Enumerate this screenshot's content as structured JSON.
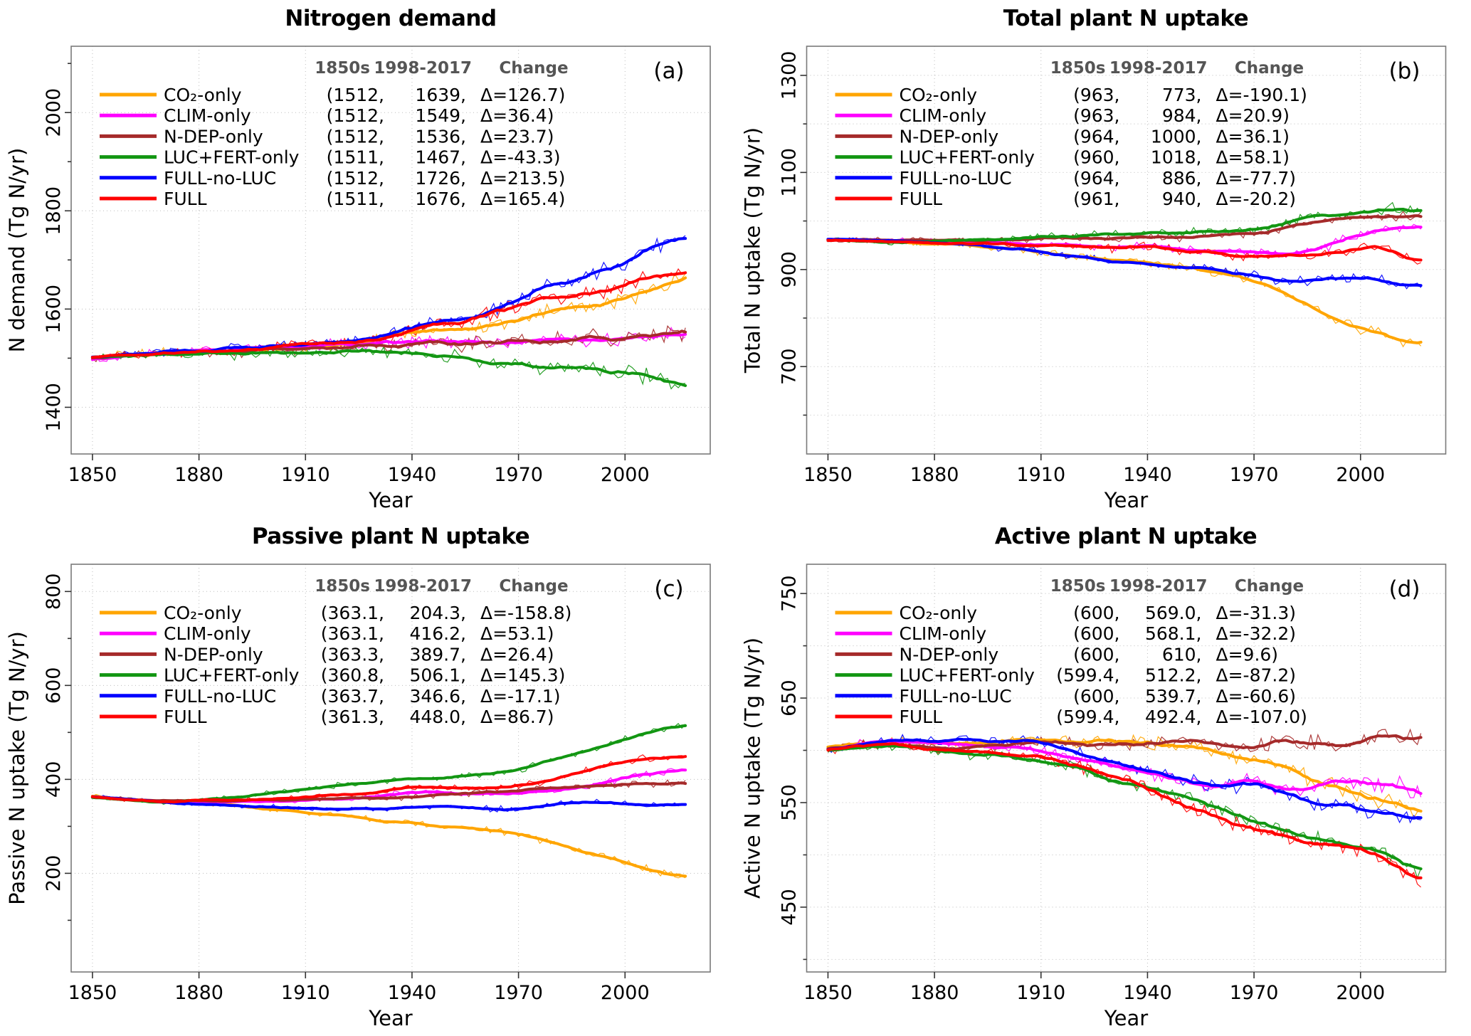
{
  "figure": {
    "background": "#ffffff"
  },
  "chart_data": [
    {
      "type": "line",
      "title": "Nitrogen demand",
      "panel_label": "(a)",
      "xlabel": "Year",
      "ylabel": "N demand (Tg N/yr)",
      "xlim": [
        1844,
        2024
      ],
      "ylim": [
        1305,
        2135
      ],
      "xticks": [
        1850,
        1880,
        1910,
        1940,
        1970,
        2000
      ],
      "yticks": [
        1400,
        1600,
        1800,
        2000
      ],
      "minor_grid": false,
      "noise_amp": 14,
      "legend_headers": [
        "1850s",
        "1998-2017",
        "Change"
      ],
      "years": [
        1850,
        1860,
        1870,
        1880,
        1890,
        1900,
        1910,
        1920,
        1930,
        1940,
        1950,
        1960,
        1970,
        1980,
        1990,
        2000,
        2010,
        2017
      ],
      "series": [
        {
          "name": "CO₂-only",
          "color": "#FFA500",
          "v1850": "1512",
          "v1998": "1639",
          "delta": "126.7",
          "values": [
            1500,
            1508,
            1512,
            1514,
            1515,
            1517,
            1522,
            1527,
            1538,
            1552,
            1558,
            1562,
            1578,
            1600,
            1612,
            1622,
            1648,
            1672
          ]
        },
        {
          "name": "CLIM-only",
          "color": "#FF00FF",
          "v1850": "1512",
          "v1998": "1549",
          "delta": "36.4",
          "values": [
            1500,
            1507,
            1511,
            1513,
            1515,
            1519,
            1524,
            1527,
            1530,
            1532,
            1535,
            1530,
            1536,
            1545,
            1536,
            1545,
            1551,
            1549
          ]
        },
        {
          "name": "N-DEP-only",
          "color": "#A52A2A",
          "v1850": "1512",
          "v1998": "1536",
          "delta": "23.7",
          "values": [
            1500,
            1506,
            1511,
            1512,
            1512,
            1516,
            1520,
            1523,
            1526,
            1528,
            1528,
            1530,
            1532,
            1536,
            1540,
            1540,
            1547,
            1550
          ]
        },
        {
          "name": "LUC+FERT-only",
          "color": "#129612",
          "v1850": "1511",
          "v1998": "1467",
          "delta": "-43.3",
          "values": [
            1500,
            1505,
            1509,
            1510,
            1508,
            1511,
            1514,
            1515,
            1514,
            1510,
            1505,
            1494,
            1490,
            1481,
            1475,
            1470,
            1464,
            1442
          ]
        },
        {
          "name": "FULL-no-LUC",
          "color": "#0000FF",
          "v1850": "1512",
          "v1998": "1726",
          "delta": "213.5",
          "values": [
            1500,
            1508,
            1514,
            1516,
            1518,
            1524,
            1530,
            1536,
            1546,
            1564,
            1576,
            1590,
            1620,
            1650,
            1665,
            1695,
            1730,
            1748
          ]
        },
        {
          "name": "FULL",
          "color": "#FF0000",
          "v1850": "1511",
          "v1998": "1676",
          "delta": "165.4",
          "values": [
            1500,
            1507,
            1512,
            1514,
            1515,
            1521,
            1527,
            1533,
            1540,
            1556,
            1570,
            1585,
            1610,
            1628,
            1630,
            1650,
            1674,
            1678
          ]
        }
      ]
    },
    {
      "type": "line",
      "title": "Total plant N uptake",
      "panel_label": "(b)",
      "xlabel": "Year",
      "ylabel": "Total N uptake (Tg N/yr)",
      "xlim": [
        1844,
        2024
      ],
      "ylim": [
        520,
        1360
      ],
      "xticks": [
        1850,
        1880,
        1910,
        1940,
        1970,
        2000
      ],
      "yticks": [
        700,
        900,
        1100,
        1300
      ],
      "minor_grid": true,
      "noise_amp": 9,
      "legend_headers": [
        "1850s",
        "1998-2017",
        "Change"
      ],
      "years": [
        1850,
        1860,
        1870,
        1880,
        1890,
        1900,
        1910,
        1920,
        1930,
        1940,
        1950,
        1960,
        1970,
        1980,
        1990,
        2000,
        2010,
        2017
      ],
      "series": [
        {
          "name": "CO₂-only",
          "color": "#FFA500",
          "v1850": "963",
          "v1998": "773",
          "delta": "-190.1",
          "values": [
            962,
            960,
            957,
            954,
            950,
            944,
            936,
            928,
            920,
            912,
            905,
            895,
            873,
            845,
            810,
            780,
            756,
            742
          ]
        },
        {
          "name": "CLIM-only",
          "color": "#FF00FF",
          "v1850": "963",
          "v1998": "984",
          "delta": "20.9",
          "values": [
            962,
            961,
            959,
            958,
            957,
            955,
            951,
            948,
            944,
            950,
            940,
            934,
            936,
            930,
            945,
            975,
            984,
            986
          ]
        },
        {
          "name": "N-DEP-only",
          "color": "#A52A2A",
          "v1850": "964",
          "v1998": "1000",
          "delta": "36.1",
          "values": [
            963,
            961,
            960,
            960,
            960,
            961,
            962,
            963,
            965,
            966,
            966,
            970,
            976,
            990,
            1000,
            1005,
            1009,
            1010
          ]
        },
        {
          "name": "LUC+FERT-only",
          "color": "#129612",
          "v1850": "960",
          "v1998": "1018",
          "delta": "58.1",
          "values": [
            960,
            958,
            957,
            958,
            961,
            964,
            968,
            970,
            972,
            974,
            975,
            978,
            985,
            1000,
            1010,
            1020,
            1026,
            1012
          ]
        },
        {
          "name": "FULL-no-LUC",
          "color": "#0000FF",
          "v1850": "964",
          "v1998": "886",
          "delta": "-77.7",
          "values": [
            962,
            960,
            958,
            954,
            950,
            944,
            937,
            928,
            919,
            911,
            905,
            898,
            888,
            876,
            881,
            884,
            871,
            861
          ]
        },
        {
          "name": "FULL",
          "color": "#FF0000",
          "v1850": "961",
          "v1998": "940",
          "delta": "-20.2",
          "values": [
            960,
            959,
            957,
            956,
            954,
            952,
            949,
            947,
            944,
            950,
            936,
            930,
            926,
            925,
            930,
            948,
            936,
            916
          ]
        }
      ]
    },
    {
      "type": "line",
      "title": "Passive plant N uptake",
      "panel_label": "(c)",
      "xlabel": "Year",
      "ylabel": "Passive N uptake (Tg N/yr)",
      "xlim": [
        1844,
        2024
      ],
      "ylim": [
        -10,
        858
      ],
      "xticks": [
        1850,
        1880,
        1910,
        1940,
        1970,
        2000
      ],
      "yticks": [
        200,
        400,
        600,
        800
      ],
      "minor_grid": false,
      "noise_amp": 6.5,
      "legend_headers": [
        "1850s",
        "1998-2017",
        "Change"
      ],
      "years": [
        1850,
        1860,
        1870,
        1880,
        1890,
        1900,
        1910,
        1920,
        1930,
        1940,
        1950,
        1960,
        1970,
        1980,
        1990,
        2000,
        2010,
        2017
      ],
      "series": [
        {
          "name": "CO₂-only",
          "color": "#FFA500",
          "v1850": "363.1",
          "v1998": "204.3",
          "delta": "-158.8",
          "values": [
            365,
            358,
            353,
            349,
            344,
            337,
            329,
            322,
            314,
            307,
            300,
            293,
            284,
            264,
            244,
            221,
            201,
            190
          ]
        },
        {
          "name": "CLIM-only",
          "color": "#FF00FF",
          "v1850": "363.1",
          "v1998": "416.2",
          "delta": "53.1",
          "values": [
            365,
            357,
            352,
            351,
            352,
            353,
            355,
            358,
            362,
            374,
            372,
            369,
            372,
            376,
            386,
            405,
            416,
            420
          ]
        },
        {
          "name": "N-DEP-only",
          "color": "#A52A2A",
          "v1850": "363.3",
          "v1998": "389.7",
          "delta": "26.4",
          "values": [
            364,
            357,
            353,
            354,
            355,
            356,
            358,
            359,
            360,
            364,
            368,
            371,
            375,
            382,
            388,
            390,
            392,
            392
          ]
        },
        {
          "name": "LUC+FERT-only",
          "color": "#129612",
          "v1850": "360.8",
          "v1998": "506.1",
          "delta": "145.3",
          "values": [
            363,
            356,
            352,
            356,
            362,
            370,
            380,
            388,
            394,
            400,
            405,
            411,
            421,
            444,
            464,
            489,
            509,
            514
          ]
        },
        {
          "name": "FULL-no-LUC",
          "color": "#0000FF",
          "v1850": "363.7",
          "v1998": "346.6",
          "delta": "-17.1",
          "values": [
            365,
            357,
            352,
            348,
            344,
            341,
            338,
            336,
            335,
            341,
            342,
            339,
            335,
            344,
            352,
            348,
            346,
            344
          ]
        },
        {
          "name": "FULL",
          "color": "#FF0000",
          "v1850": "361.3",
          "v1998": "448.0",
          "delta": "86.7",
          "values": [
            363,
            356,
            352,
            354,
            356,
            358,
            362,
            366,
            372,
            384,
            382,
            380,
            386,
            400,
            420,
            439,
            447,
            449
          ]
        }
      ]
    },
    {
      "type": "line",
      "title": "Active plant N uptake",
      "panel_label": "(d)",
      "xlabel": "Year",
      "ylabel": "Active N uptake (Tg N/yr)",
      "xlim": [
        1844,
        2024
      ],
      "ylim": [
        388,
        778
      ],
      "xticks": [
        1850,
        1880,
        1910,
        1940,
        1970,
        2000
      ],
      "yticks": [
        450,
        550,
        650,
        750
      ],
      "minor_grid": true,
      "noise_amp": 6.5,
      "legend_headers": [
        "1850s",
        "1998-2017",
        "Change"
      ],
      "years": [
        1850,
        1860,
        1870,
        1880,
        1890,
        1900,
        1910,
        1920,
        1930,
        1940,
        1950,
        1960,
        1970,
        1980,
        1990,
        2000,
        2010,
        2017
      ],
      "series": [
        {
          "name": "CO₂-only",
          "color": "#FFA500",
          "v1850": "600",
          "v1998": "569.0",
          "delta": "-31.3",
          "values": [
            600,
            606,
            608,
            607,
            608,
            609,
            610,
            609,
            608,
            607,
            605,
            600,
            591,
            580,
            568,
            558,
            549,
            541
          ]
        },
        {
          "name": "CLIM-only",
          "color": "#FF00FF",
          "v1850": "600",
          "v1998": "568.1",
          "delta": "-32.2",
          "values": [
            600,
            607,
            608,
            606,
            605,
            603,
            600,
            593,
            585,
            576,
            570,
            568,
            572,
            562,
            568,
            570,
            567,
            557
          ]
        },
        {
          "name": "N-DEP-only",
          "color": "#A52A2A",
          "v1850": "600",
          "v1998": "610",
          "delta": "9.6",
          "values": [
            601,
            606,
            606,
            604,
            603,
            605,
            608,
            606,
            605,
            606,
            608,
            605,
            602,
            612,
            605,
            608,
            614,
            610
          ]
        },
        {
          "name": "LUC+FERT-only",
          "color": "#129612",
          "v1850": "599.4",
          "v1998": "512.2",
          "delta": "-87.2",
          "values": [
            598,
            603,
            604,
            600,
            595,
            593,
            590,
            585,
            571,
            565,
            555,
            545,
            532,
            522,
            515,
            508,
            498,
            483
          ]
        },
        {
          "name": "FULL-no-LUC",
          "color": "#0000FF",
          "v1850": "600",
          "v1998": "539.7",
          "delta": "-60.6",
          "values": [
            600,
            607,
            610,
            609,
            610,
            609,
            607,
            598,
            588,
            580,
            572,
            565,
            569,
            558,
            548,
            545,
            538,
            532
          ]
        },
        {
          "name": "FULL",
          "color": "#FF0000",
          "v1850": "599.4",
          "v1998": "492.4",
          "delta": "-107.0",
          "values": [
            598,
            605,
            606,
            601,
            598,
            596,
            595,
            585,
            575,
            565,
            548,
            535,
            525,
            515,
            510,
            505,
            491,
            470
          ]
        }
      ]
    }
  ]
}
